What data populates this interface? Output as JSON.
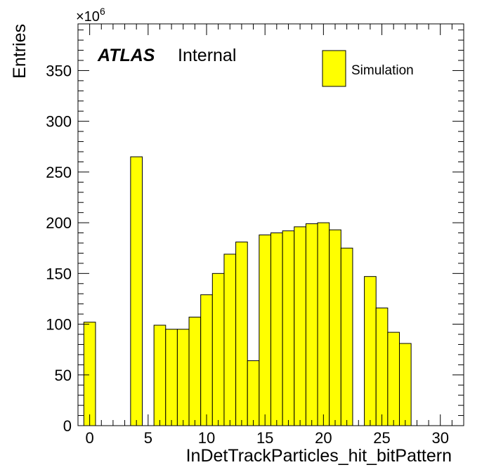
{
  "chart_data": {
    "type": "bar",
    "histogram": true,
    "xlabel": "InDetTrackParticles_hit_bitPattern",
    "ylabel": "Entries",
    "y_multiplier": "×10",
    "y_multiplier_exp": "6",
    "xlim": [
      -1,
      32
    ],
    "ylim": [
      0,
      396
    ],
    "x_major_ticks": [
      0,
      5,
      10,
      15,
      20,
      25,
      30
    ],
    "x_minor_step": 1,
    "y_major_ticks": [
      0,
      50,
      100,
      150,
      200,
      250,
      300,
      350
    ],
    "y_minor_step": 10,
    "x_tick_labels": [
      "0",
      "5",
      "10",
      "15",
      "20",
      "25",
      "30"
    ],
    "y_tick_labels": [
      "0",
      "50",
      "100",
      "150",
      "200",
      "250",
      "300",
      "350"
    ],
    "bin_width": 1,
    "bins": [
      {
        "x": 0,
        "value": 102
      },
      {
        "x": 1,
        "value": 0
      },
      {
        "x": 2,
        "value": 0
      },
      {
        "x": 3,
        "value": 0
      },
      {
        "x": 4,
        "value": 265
      },
      {
        "x": 5,
        "value": 0
      },
      {
        "x": 6,
        "value": 99
      },
      {
        "x": 7,
        "value": 95
      },
      {
        "x": 8,
        "value": 95
      },
      {
        "x": 9,
        "value": 107
      },
      {
        "x": 10,
        "value": 129
      },
      {
        "x": 11,
        "value": 150
      },
      {
        "x": 12,
        "value": 169
      },
      {
        "x": 13,
        "value": 181
      },
      {
        "x": 14,
        "value": 64
      },
      {
        "x": 15,
        "value": 188
      },
      {
        "x": 16,
        "value": 190
      },
      {
        "x": 17,
        "value": 192
      },
      {
        "x": 18,
        "value": 196
      },
      {
        "x": 19,
        "value": 199
      },
      {
        "x": 20,
        "value": 200
      },
      {
        "x": 21,
        "value": 193
      },
      {
        "x": 22,
        "value": 175
      },
      {
        "x": 23,
        "value": 0
      },
      {
        "x": 24,
        "value": 147
      },
      {
        "x": 25,
        "value": 116
      },
      {
        "x": 26,
        "value": 92
      },
      {
        "x": 27,
        "value": 81
      }
    ],
    "series": [
      {
        "name": "Simulation",
        "color": "#ffff00"
      }
    ],
    "legend_position": "top-right",
    "grid": false,
    "annotations": {
      "atlas": "ATLAS",
      "status": "Internal"
    }
  }
}
